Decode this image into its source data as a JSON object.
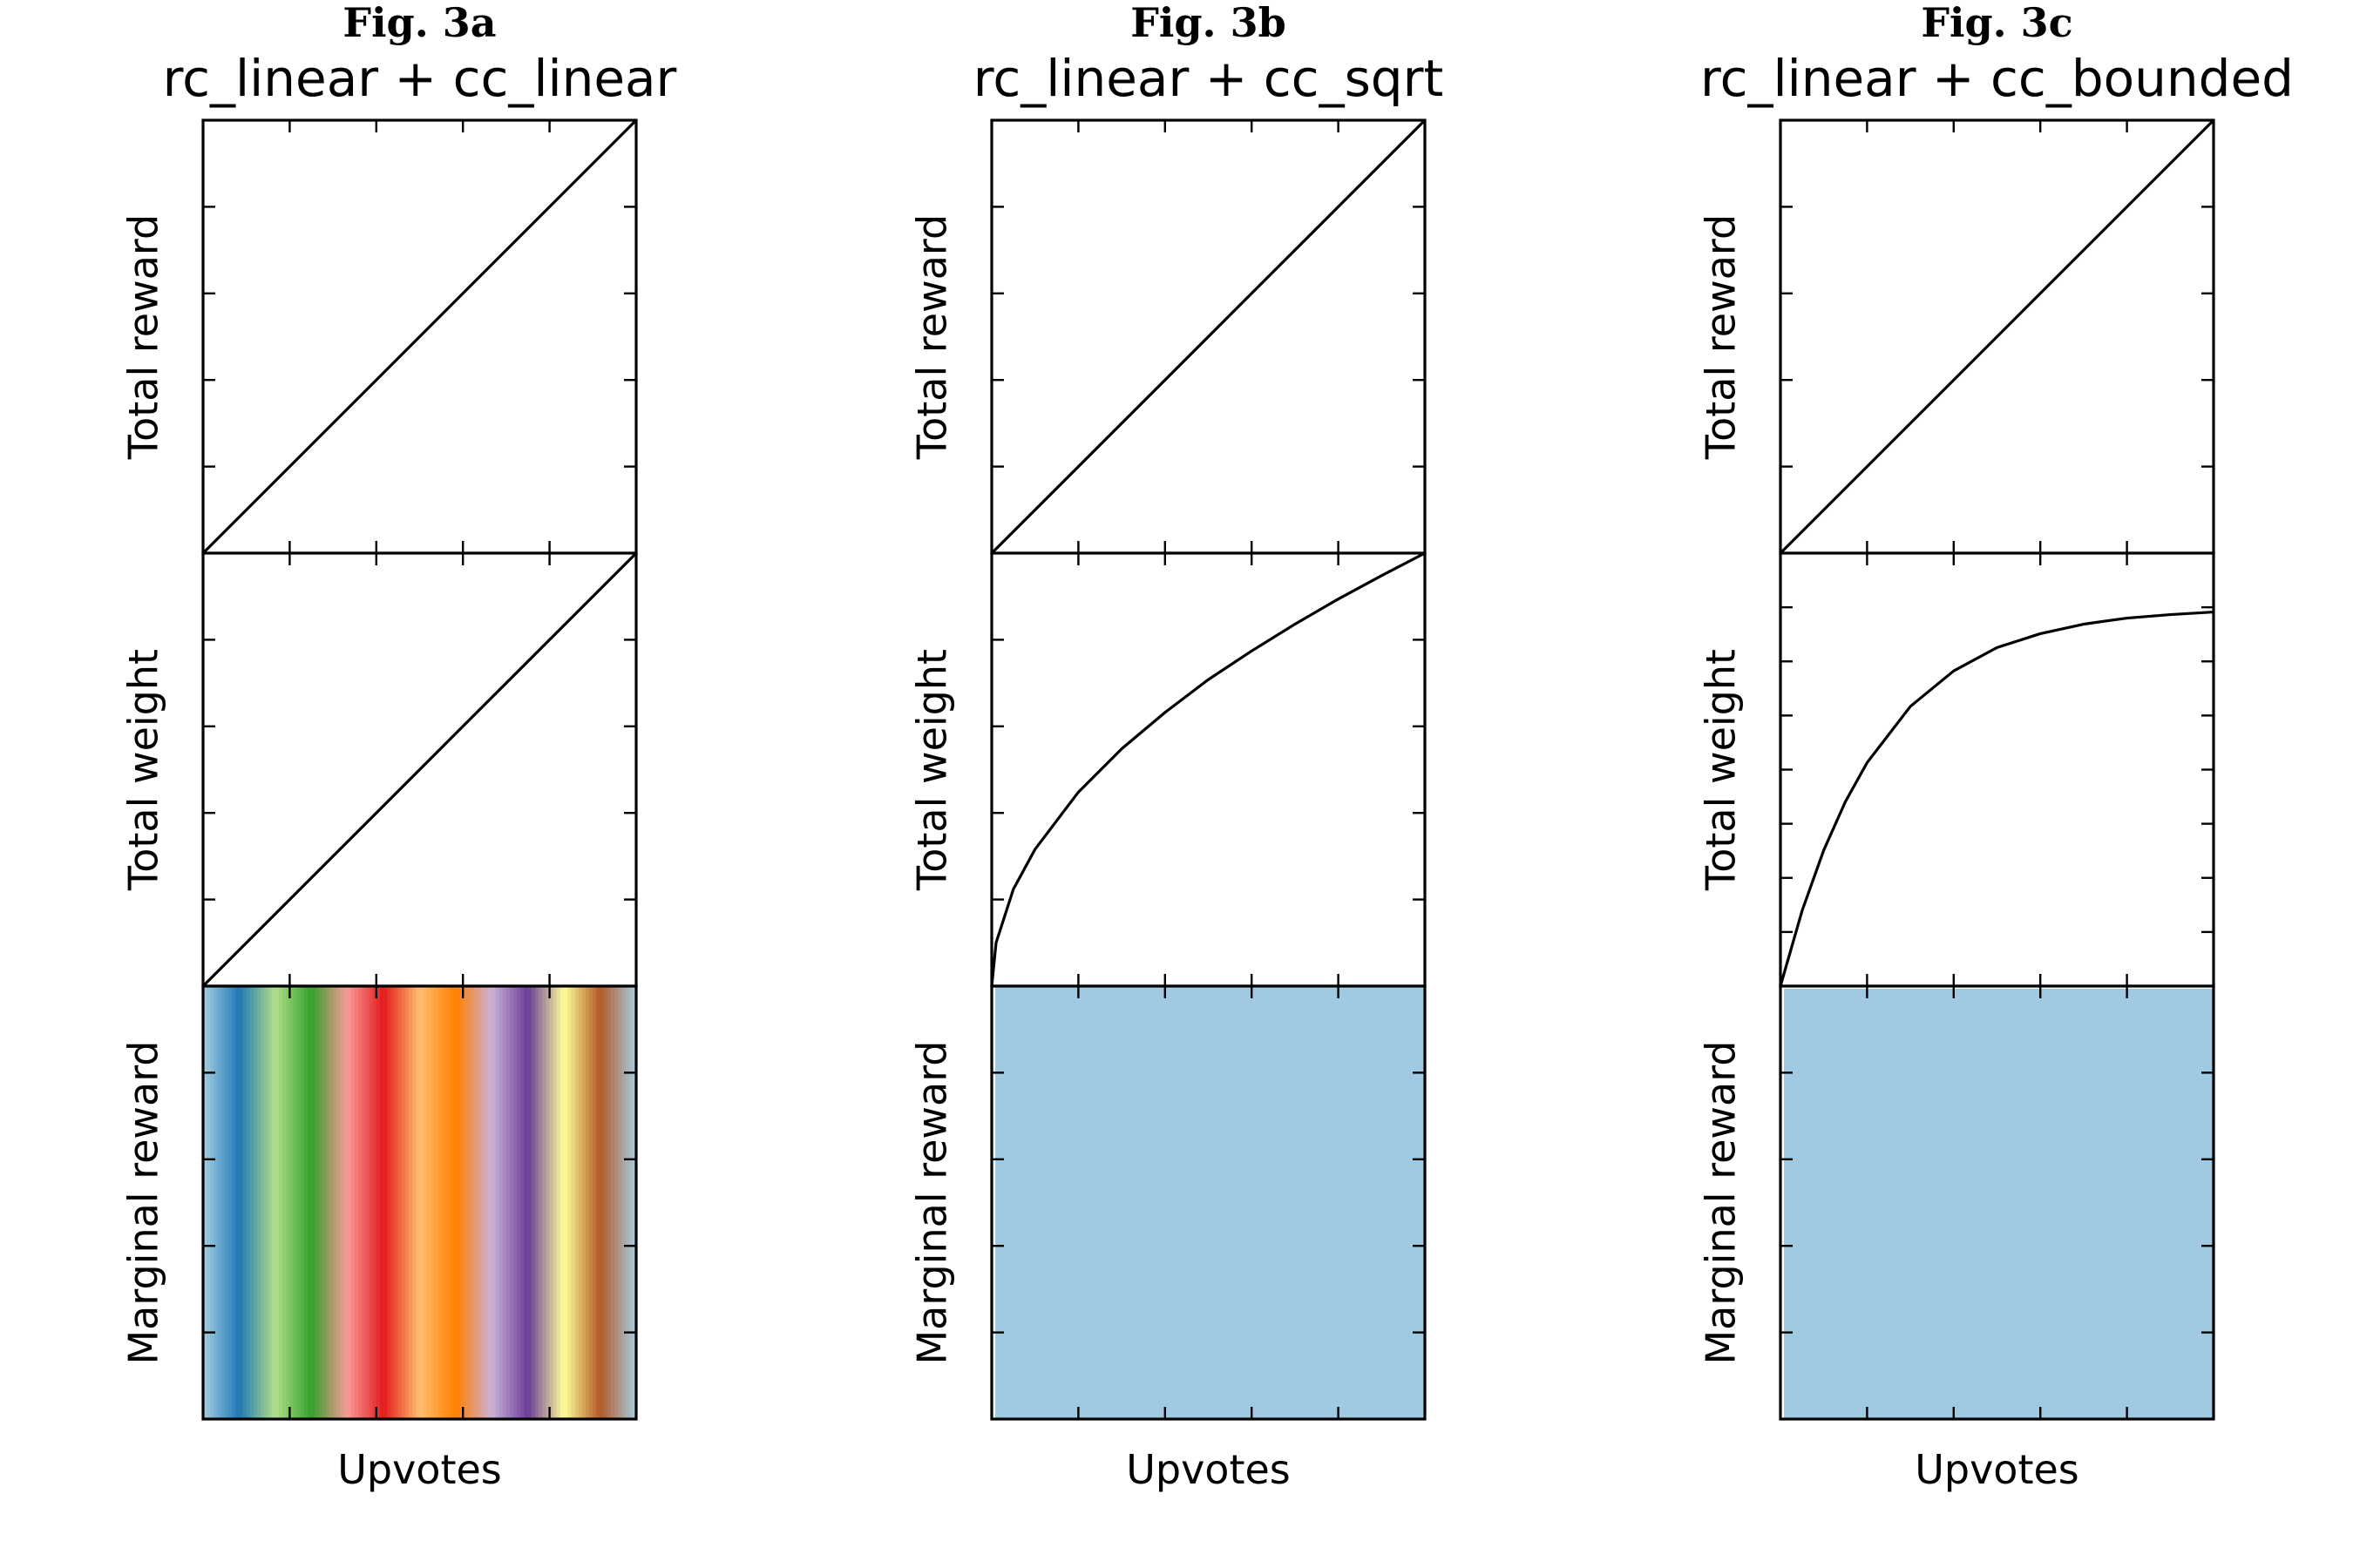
{
  "chart_data": [
    {
      "figure_label": "Fig. 3a",
      "title": "rc_linear + cc_linear",
      "xlabel": "Upvotes",
      "type": "line",
      "panels": [
        {
          "ylabel": "Total reward",
          "type": "line",
          "x": [
            0,
            1,
            2,
            3,
            4,
            5
          ],
          "y": [
            0,
            1,
            2,
            3,
            4,
            5
          ],
          "xlim": [
            0,
            5
          ],
          "ylim": [
            0,
            5
          ]
        },
        {
          "ylabel": "Total weight",
          "type": "line",
          "x": [
            0,
            1,
            2,
            3,
            4,
            5
          ],
          "y": [
            0,
            1,
            2,
            3,
            4,
            5
          ],
          "xlim": [
            0,
            5
          ],
          "ylim": [
            0,
            5
          ]
        },
        {
          "ylabel": "Marginal reward",
          "type": "heatmap",
          "band_mode": "vertical",
          "xlim": [
            0,
            5
          ],
          "ylim": [
            0,
            5
          ]
        }
      ]
    },
    {
      "figure_label": "Fig. 3b",
      "title": "rc_linear + cc_sqrt",
      "xlabel": "Upvotes",
      "type": "line",
      "panels": [
        {
          "ylabel": "Total reward",
          "type": "line",
          "x": [
            0,
            1,
            2,
            3,
            4,
            5
          ],
          "y": [
            0,
            1,
            2,
            3,
            4,
            5
          ],
          "xlim": [
            0,
            5
          ],
          "ylim": [
            0,
            5
          ]
        },
        {
          "ylabel": "Total weight",
          "type": "line",
          "x": [
            0,
            0.05,
            0.25,
            0.5,
            1,
            1.5,
            2,
            2.5,
            3,
            3.5,
            4,
            4.5,
            5
          ],
          "y": [
            0,
            0.5,
            1.12,
            1.58,
            2.24,
            2.74,
            3.16,
            3.54,
            3.87,
            4.18,
            4.47,
            4.74,
            5
          ],
          "xlim": [
            0,
            5
          ],
          "ylim": [
            0,
            5
          ]
        },
        {
          "ylabel": "Marginal reward",
          "type": "heatmap",
          "band_mode": "sqrt",
          "xlim": [
            0,
            5
          ],
          "ylim": [
            0,
            5
          ]
        }
      ]
    },
    {
      "figure_label": "Fig. 3c",
      "title": "rc_linear + cc_bounded",
      "xlabel": "Upvotes",
      "type": "line",
      "panels": [
        {
          "ylabel": "Total reward",
          "type": "line",
          "x": [
            0,
            1,
            2,
            3,
            4,
            5
          ],
          "y": [
            0,
            1,
            2,
            3,
            4,
            5
          ],
          "xlim": [
            0,
            5
          ],
          "ylim": [
            0,
            5
          ]
        },
        {
          "ylabel": "Total weight",
          "type": "line",
          "x": [
            0,
            0.25,
            0.5,
            0.75,
            1,
            1.5,
            2,
            2.5,
            3,
            3.5,
            4,
            4.5,
            5
          ],
          "y": [
            0,
            0.87,
            1.57,
            2.13,
            2.58,
            3.23,
            3.64,
            3.91,
            4.07,
            4.18,
            4.25,
            4.29,
            4.32
          ],
          "xlim": [
            0,
            5
          ],
          "ylim": [
            0,
            5
          ]
        },
        {
          "ylabel": "Marginal reward",
          "type": "heatmap",
          "band_mode": "bounded",
          "xlim": [
            0,
            5
          ],
          "ylim": [
            0,
            5
          ]
        }
      ]
    }
  ],
  "colormap": [
    "#a6cee3",
    "#1f78b4",
    "#b2df8a",
    "#33a02c",
    "#fb9a99",
    "#e31a1c",
    "#fdbf6f",
    "#ff7f00",
    "#cab2d6",
    "#6a3d9a",
    "#ffff99",
    "#b15928"
  ]
}
